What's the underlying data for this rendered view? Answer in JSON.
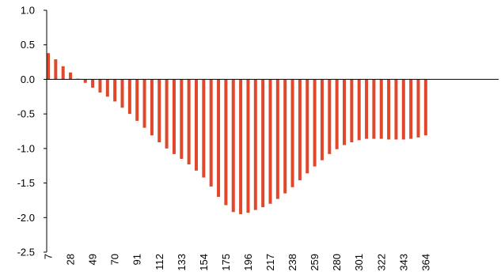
{
  "chart_data": {
    "type": "bar",
    "title": "",
    "xlabel": "",
    "ylabel": "",
    "ylim": [
      -2.5,
      1.0
    ],
    "yticks": [
      1.0,
      0.5,
      0.0,
      -0.5,
      -1.0,
      -1.5,
      -2.0,
      -2.5
    ],
    "ytick_labels": [
      "1.0",
      "0.5",
      "0.0",
      "-0.5",
      "-1.0",
      "-1.5",
      "-2.0",
      "-2.5"
    ],
    "xtick_labels": [
      "7",
      "28",
      "49",
      "70",
      "91",
      "112",
      "133",
      "154",
      "175",
      "196",
      "217",
      "238",
      "259",
      "280",
      "301",
      "322",
      "343",
      "364"
    ],
    "bar_color": "#e0472b",
    "categories": [
      7,
      14,
      21,
      28,
      35,
      42,
      49,
      56,
      63,
      70,
      77,
      84,
      91,
      98,
      105,
      112,
      119,
      126,
      133,
      140,
      147,
      154,
      161,
      168,
      175,
      182,
      189,
      196,
      203,
      210,
      217,
      224,
      231,
      238,
      245,
      252,
      259,
      266,
      273,
      280,
      287,
      294,
      301,
      308,
      315,
      322,
      329,
      336,
      343,
      350,
      357,
      364
    ],
    "values": [
      0.38,
      0.29,
      0.19,
      0.1,
      0.01,
      -0.05,
      -0.12,
      -0.19,
      -0.25,
      -0.32,
      -0.41,
      -0.5,
      -0.6,
      -0.7,
      -0.81,
      -0.91,
      -1.0,
      -1.08,
      -1.15,
      -1.23,
      -1.32,
      -1.42,
      -1.55,
      -1.7,
      -1.82,
      -1.92,
      -1.95,
      -1.93,
      -1.89,
      -1.85,
      -1.8,
      -1.73,
      -1.65,
      -1.56,
      -1.46,
      -1.36,
      -1.26,
      -1.17,
      -1.08,
      -1.01,
      -0.95,
      -0.91,
      -0.88,
      -0.86,
      -0.86,
      -0.86,
      -0.87,
      -0.87,
      -0.87,
      -0.86,
      -0.84,
      -0.81
    ]
  }
}
